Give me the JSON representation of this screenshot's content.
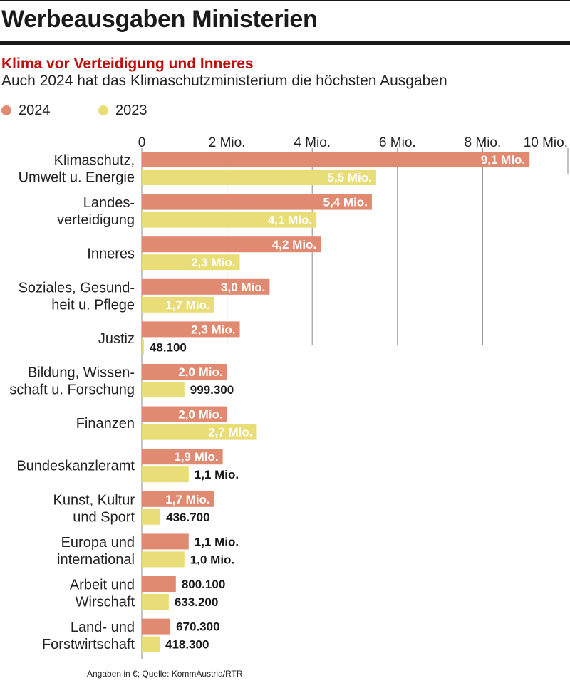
{
  "header": {
    "title": "Werbeausgaben Ministerien",
    "subtitle": "Klima vor Verteidigung und Inneres",
    "description": "Auch 2024 hat das Klimaschutzministerium die höchsten Ausgaben"
  },
  "legend": [
    {
      "label": "2024",
      "color": "#e08a72"
    },
    {
      "label": "2023",
      "color": "#e8dd76"
    }
  ],
  "footer": {
    "source": "Angaben in €; Quelle: KommAustria/RTR"
  },
  "chart_data": {
    "type": "bar",
    "orientation": "horizontal",
    "title": "Werbeausgaben Ministerien",
    "unit": "€",
    "xlim": [
      0,
      10000000
    ],
    "x_ticks": [
      {
        "value": 0,
        "label": "0"
      },
      {
        "value": 2000000,
        "label": "2 Mio."
      },
      {
        "value": 4000000,
        "label": "4 Mio."
      },
      {
        "value": 6000000,
        "label": "6 Mio."
      },
      {
        "value": 8000000,
        "label": "8 Mio."
      },
      {
        "value": 10000000,
        "label": "10 Mio."
      }
    ],
    "categories": [
      [
        "Klimaschutz,",
        "Umwelt u. Energie"
      ],
      [
        "Landes-",
        "verteidigung"
      ],
      [
        "Inneres"
      ],
      [
        "Soziales, Gesund-",
        "heit u. Pflege"
      ],
      [
        "Justiz"
      ],
      [
        "Bildung, Wissen-",
        "schaft u. Forschung"
      ],
      [
        "Finanzen"
      ],
      [
        "Bundeskanzleramt"
      ],
      [
        "Kunst, Kultur",
        "und Sport"
      ],
      [
        "Europa und",
        "international"
      ],
      [
        "Arbeit und",
        "Wirschaft"
      ],
      [
        "Land- und",
        "Forstwirtschaft"
      ]
    ],
    "series": [
      {
        "name": "2024",
        "color": "#e08a72",
        "values": [
          9100000,
          5400000,
          4200000,
          3000000,
          2300000,
          2000000,
          2000000,
          1900000,
          1700000,
          1100000,
          800100,
          670300
        ],
        "labels": [
          "9,1 Mio.",
          "5,4 Mio.",
          "4,2 Mio.",
          "3,0 Mio.",
          "2,3 Mio.",
          "2,0 Mio.",
          "2,0 Mio.",
          "1,9 Mio.",
          "1,7 Mio.",
          "1,1 Mio.",
          "800.100",
          "670.300"
        ]
      },
      {
        "name": "2023",
        "color": "#e8dd76",
        "values": [
          5500000,
          4100000,
          2300000,
          1700000,
          48100,
          999300,
          2700000,
          1100000,
          436700,
          1000000,
          633200,
          418300
        ],
        "labels": [
          "5,5 Mio.",
          "4,1 Mio.",
          "2,3 Mio.",
          "1,7 Mio.",
          "48.100",
          "999.300",
          "2,7 Mio.",
          "1,1 Mio.",
          "436.700",
          "1,0 Mio.",
          "633.200",
          "418.300"
        ]
      }
    ]
  }
}
